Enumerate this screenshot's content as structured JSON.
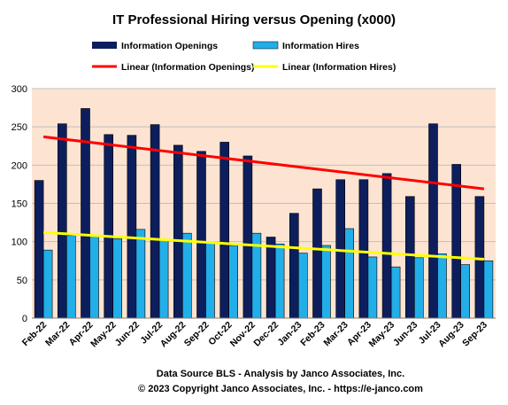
{
  "chart_data": {
    "type": "bar",
    "title": "IT Professional Hiring versus Opening (x000)",
    "categories": [
      "Feb-22",
      "Mar-22",
      "Apr-22",
      "May-22",
      "Jun-22",
      "Jul-22",
      "Aug-22",
      "Sep-22",
      "Oct-22",
      "Nov-22",
      "Dec-22",
      "Jan-23",
      "Feb-23",
      "Mar-23",
      "Apr-23",
      "May-23",
      "Jun-23",
      "Jul-23",
      "Aug-23",
      "Sep-23"
    ],
    "series": [
      {
        "name": "Information Openings",
        "color": "#0d1e5c",
        "values": [
          180,
          254,
          274,
          240,
          239,
          253,
          226,
          218,
          230,
          212,
          106,
          137,
          169,
          181,
          181,
          189,
          159,
          254,
          201,
          159
        ]
      },
      {
        "name": "Information Hires",
        "color": "#22aee8",
        "values": [
          89,
          108,
          108,
          104,
          116,
          102,
          111,
          98,
          95,
          111,
          97,
          85,
          95,
          117,
          80,
          67,
          79,
          84,
          70,
          75
        ]
      }
    ],
    "trendlines": [
      {
        "name": "Linear (Information Openings)",
        "color": "#ff0000",
        "start": 237,
        "end": 169
      },
      {
        "name": "Linear (Information Hires)",
        "color": "#ffff00",
        "start": 112,
        "end": 77
      }
    ],
    "ylim": [
      0,
      300
    ],
    "yticks": [
      0,
      50,
      100,
      150,
      200,
      250,
      300
    ],
    "grid": true,
    "legend_placement": "top",
    "plot_background": "#fde4d2",
    "footer": [
      "Data Source BLS - Analysis by Janco Associates, Inc.",
      "© 2023 Copyright Janco Associates, Inc. - https://e-janco.com"
    ]
  }
}
